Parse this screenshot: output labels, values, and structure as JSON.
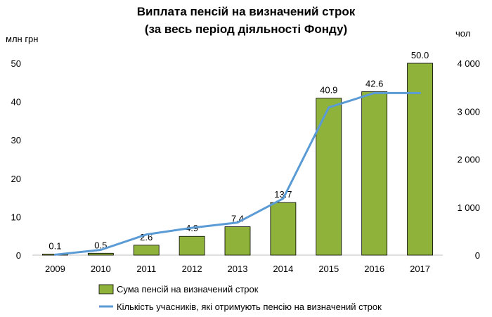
{
  "chart_data": {
    "type": "bar",
    "title_line1": "Виплата пенсій на визначений строк",
    "title_line2": "(за весь період діяльності Фонду)",
    "ylabel_left": "млн грн",
    "ylabel_right": "чол",
    "categories": [
      "2009",
      "2010",
      "2011",
      "2012",
      "2013",
      "2014",
      "2015",
      "2016",
      "2017"
    ],
    "series": [
      {
        "name": "Сума пенсій на визначений строк",
        "type": "bar",
        "axis": "left",
        "color": "#8fb33a",
        "values": [
          0.1,
          0.5,
          2.6,
          4.9,
          7.4,
          13.7,
          40.9,
          42.6,
          50.0
        ],
        "labels": [
          "0.1",
          "0.5",
          "2.6",
          "4.9",
          "7.4",
          "13.7",
          "40.9",
          "42.6",
          "50.0"
        ]
      },
      {
        "name": "Кількість учасників, які отримують пенсію на визначений строк",
        "type": "line",
        "axis": "right",
        "color": "#5b9bd5",
        "values": [
          10,
          110,
          430,
          570,
          680,
          1180,
          3080,
          3380,
          3380
        ]
      }
    ],
    "ylim_left": [
      0,
      50
    ],
    "yticks_left": [
      0,
      10,
      20,
      30,
      40,
      50
    ],
    "ylim_right": [
      0,
      4000
    ],
    "yticks_right": [
      "0",
      "1 000",
      "2 000",
      "3 000",
      "4 000"
    ],
    "grid": false,
    "legend_position": "bottom"
  }
}
